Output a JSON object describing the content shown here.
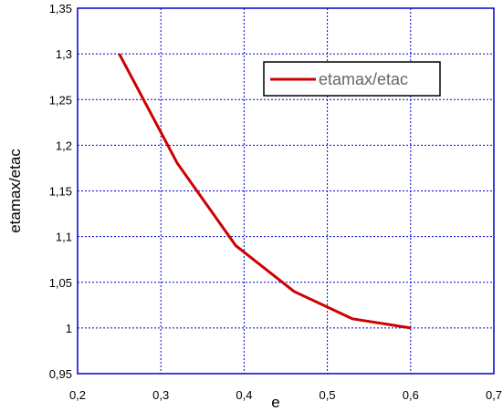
{
  "chart_data": {
    "type": "line",
    "title": "",
    "xlabel": "e",
    "ylabel": "etamax/etac",
    "xlim": [
      0.2,
      0.7
    ],
    "ylim": [
      0.95,
      1.35
    ],
    "x_ticks": [
      0.2,
      0.3,
      0.4,
      0.5,
      0.6,
      0.7
    ],
    "x_tick_labels": [
      "0,2",
      "0,3",
      "0,4",
      "0,5",
      "0,6",
      "0,7"
    ],
    "y_ticks": [
      0.95,
      1.0,
      1.05,
      1.1,
      1.15,
      1.2,
      1.25,
      1.3,
      1.35
    ],
    "y_tick_labels": [
      "0,95",
      "1",
      "1,05",
      "1,1",
      "1,15",
      "1,2",
      "1,25",
      "1,3",
      "1,35"
    ],
    "grid": true,
    "legend_position": "top-right",
    "series": [
      {
        "name": "etamax/etac",
        "color": "#cc0000",
        "x": [
          0.25,
          0.32,
          0.39,
          0.46,
          0.53,
          0.6
        ],
        "y": [
          1.3,
          1.18,
          1.09,
          1.04,
          1.01,
          1.0
        ]
      }
    ]
  },
  "colors": {
    "frame": "#0000cc",
    "grid": "#0000cc",
    "background": "#ffffff"
  }
}
